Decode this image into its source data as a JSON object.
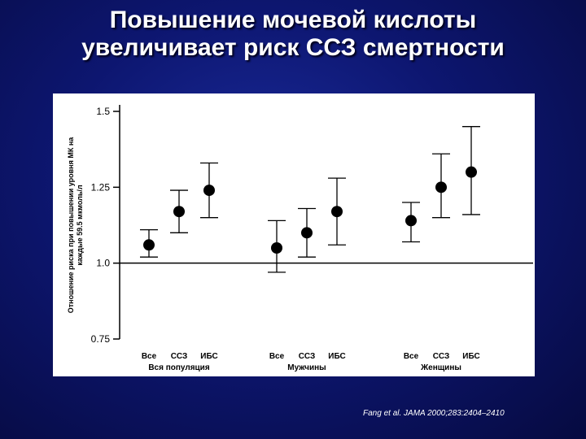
{
  "slide": {
    "title_line1": "Повышение мочевой кислоты",
    "title_line2": "увеличивает риск ССЗ смертности",
    "citation": "Fang et al. JAMA 2000;283:2404–2410"
  },
  "chart_data": {
    "type": "scatter",
    "ylabel_line1": "Отношение риска при повышении уровня МК на",
    "ylabel_line2": "каждые 59.5 мкмоль/л",
    "ylim": [
      0.75,
      1.5
    ],
    "yticks": [
      "0.75",
      "1.0",
      "1.25",
      "1.5"
    ],
    "reference_line": 1.0,
    "grid": false,
    "groups": [
      {
        "label": "Вся популяция",
        "points": [
          {
            "category": "Все",
            "value": 1.06,
            "lower": 1.02,
            "upper": 1.11
          },
          {
            "category": "ССЗ",
            "value": 1.17,
            "lower": 1.1,
            "upper": 1.24
          },
          {
            "category": "ИБС",
            "value": 1.24,
            "lower": 1.15,
            "upper": 1.33
          }
        ]
      },
      {
        "label": "Мужчины",
        "points": [
          {
            "category": "Все",
            "value": 1.05,
            "lower": 0.97,
            "upper": 1.14
          },
          {
            "category": "ССЗ",
            "value": 1.1,
            "lower": 1.02,
            "upper": 1.18
          },
          {
            "category": "ИБС",
            "value": 1.17,
            "lower": 1.06,
            "upper": 1.28
          }
        ]
      },
      {
        "label": "Женщины",
        "points": [
          {
            "category": "Все",
            "value": 1.14,
            "lower": 1.07,
            "upper": 1.2
          },
          {
            "category": "ССЗ",
            "value": 1.25,
            "lower": 1.15,
            "upper": 1.36
          },
          {
            "category": "ИБС",
            "value": 1.3,
            "lower": 1.16,
            "upper": 1.45
          }
        ]
      }
    ]
  }
}
